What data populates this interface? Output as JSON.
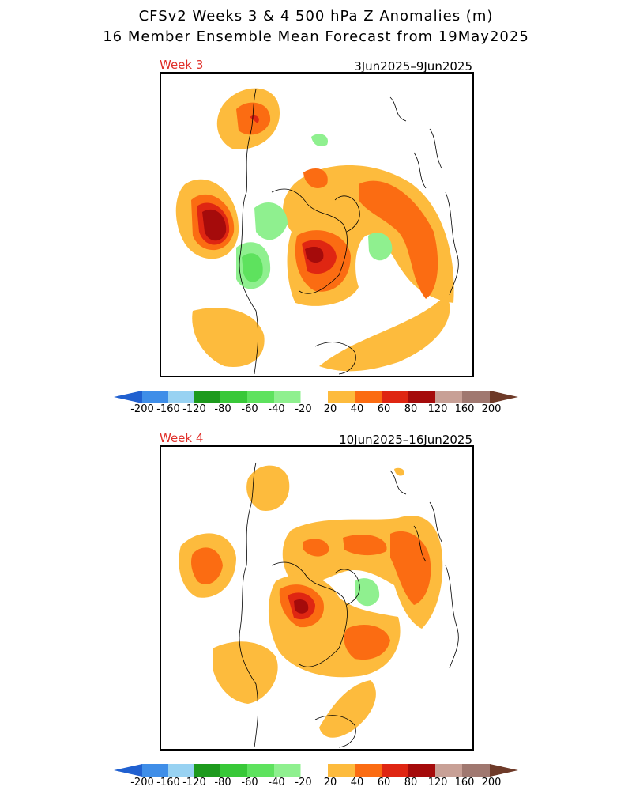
{
  "title": {
    "line1": "CFSv2 Weeks 3 & 4 500 hPa Z Anomalies (m)",
    "line2": "16 Member Ensemble Mean Forecast from 19May2025"
  },
  "panels": [
    {
      "week_label": "Week 3",
      "date_range": "3Jun2025–9Jun2025"
    },
    {
      "week_label": "Week 4",
      "date_range": "10Jun2025–16Jun2025"
    }
  ],
  "colorbar": {
    "labels": [
      "-200",
      "-160",
      "-120",
      "-80",
      "-60",
      "-40",
      "-20",
      "20",
      "40",
      "60",
      "80",
      "120",
      "160",
      "200"
    ],
    "colors": {
      "neg_arrow": "#2060d0",
      "n200": "#3f8ee8",
      "n160": "#98d2f2",
      "n120": "#1d9a1d",
      "n80": "#38c838",
      "n60": "#5ee25e",
      "n40": "#8ff08f",
      "n20": "#bdf8bd",
      "zero": "#ffffff",
      "p20": "#fdbb3d",
      "p40": "#fb6c12",
      "p60": "#df2612",
      "p80": "#a50b0b",
      "p120": "#c8a096",
      "p160": "#a07870",
      "pos_arrow": "#6e3a28"
    }
  }
}
